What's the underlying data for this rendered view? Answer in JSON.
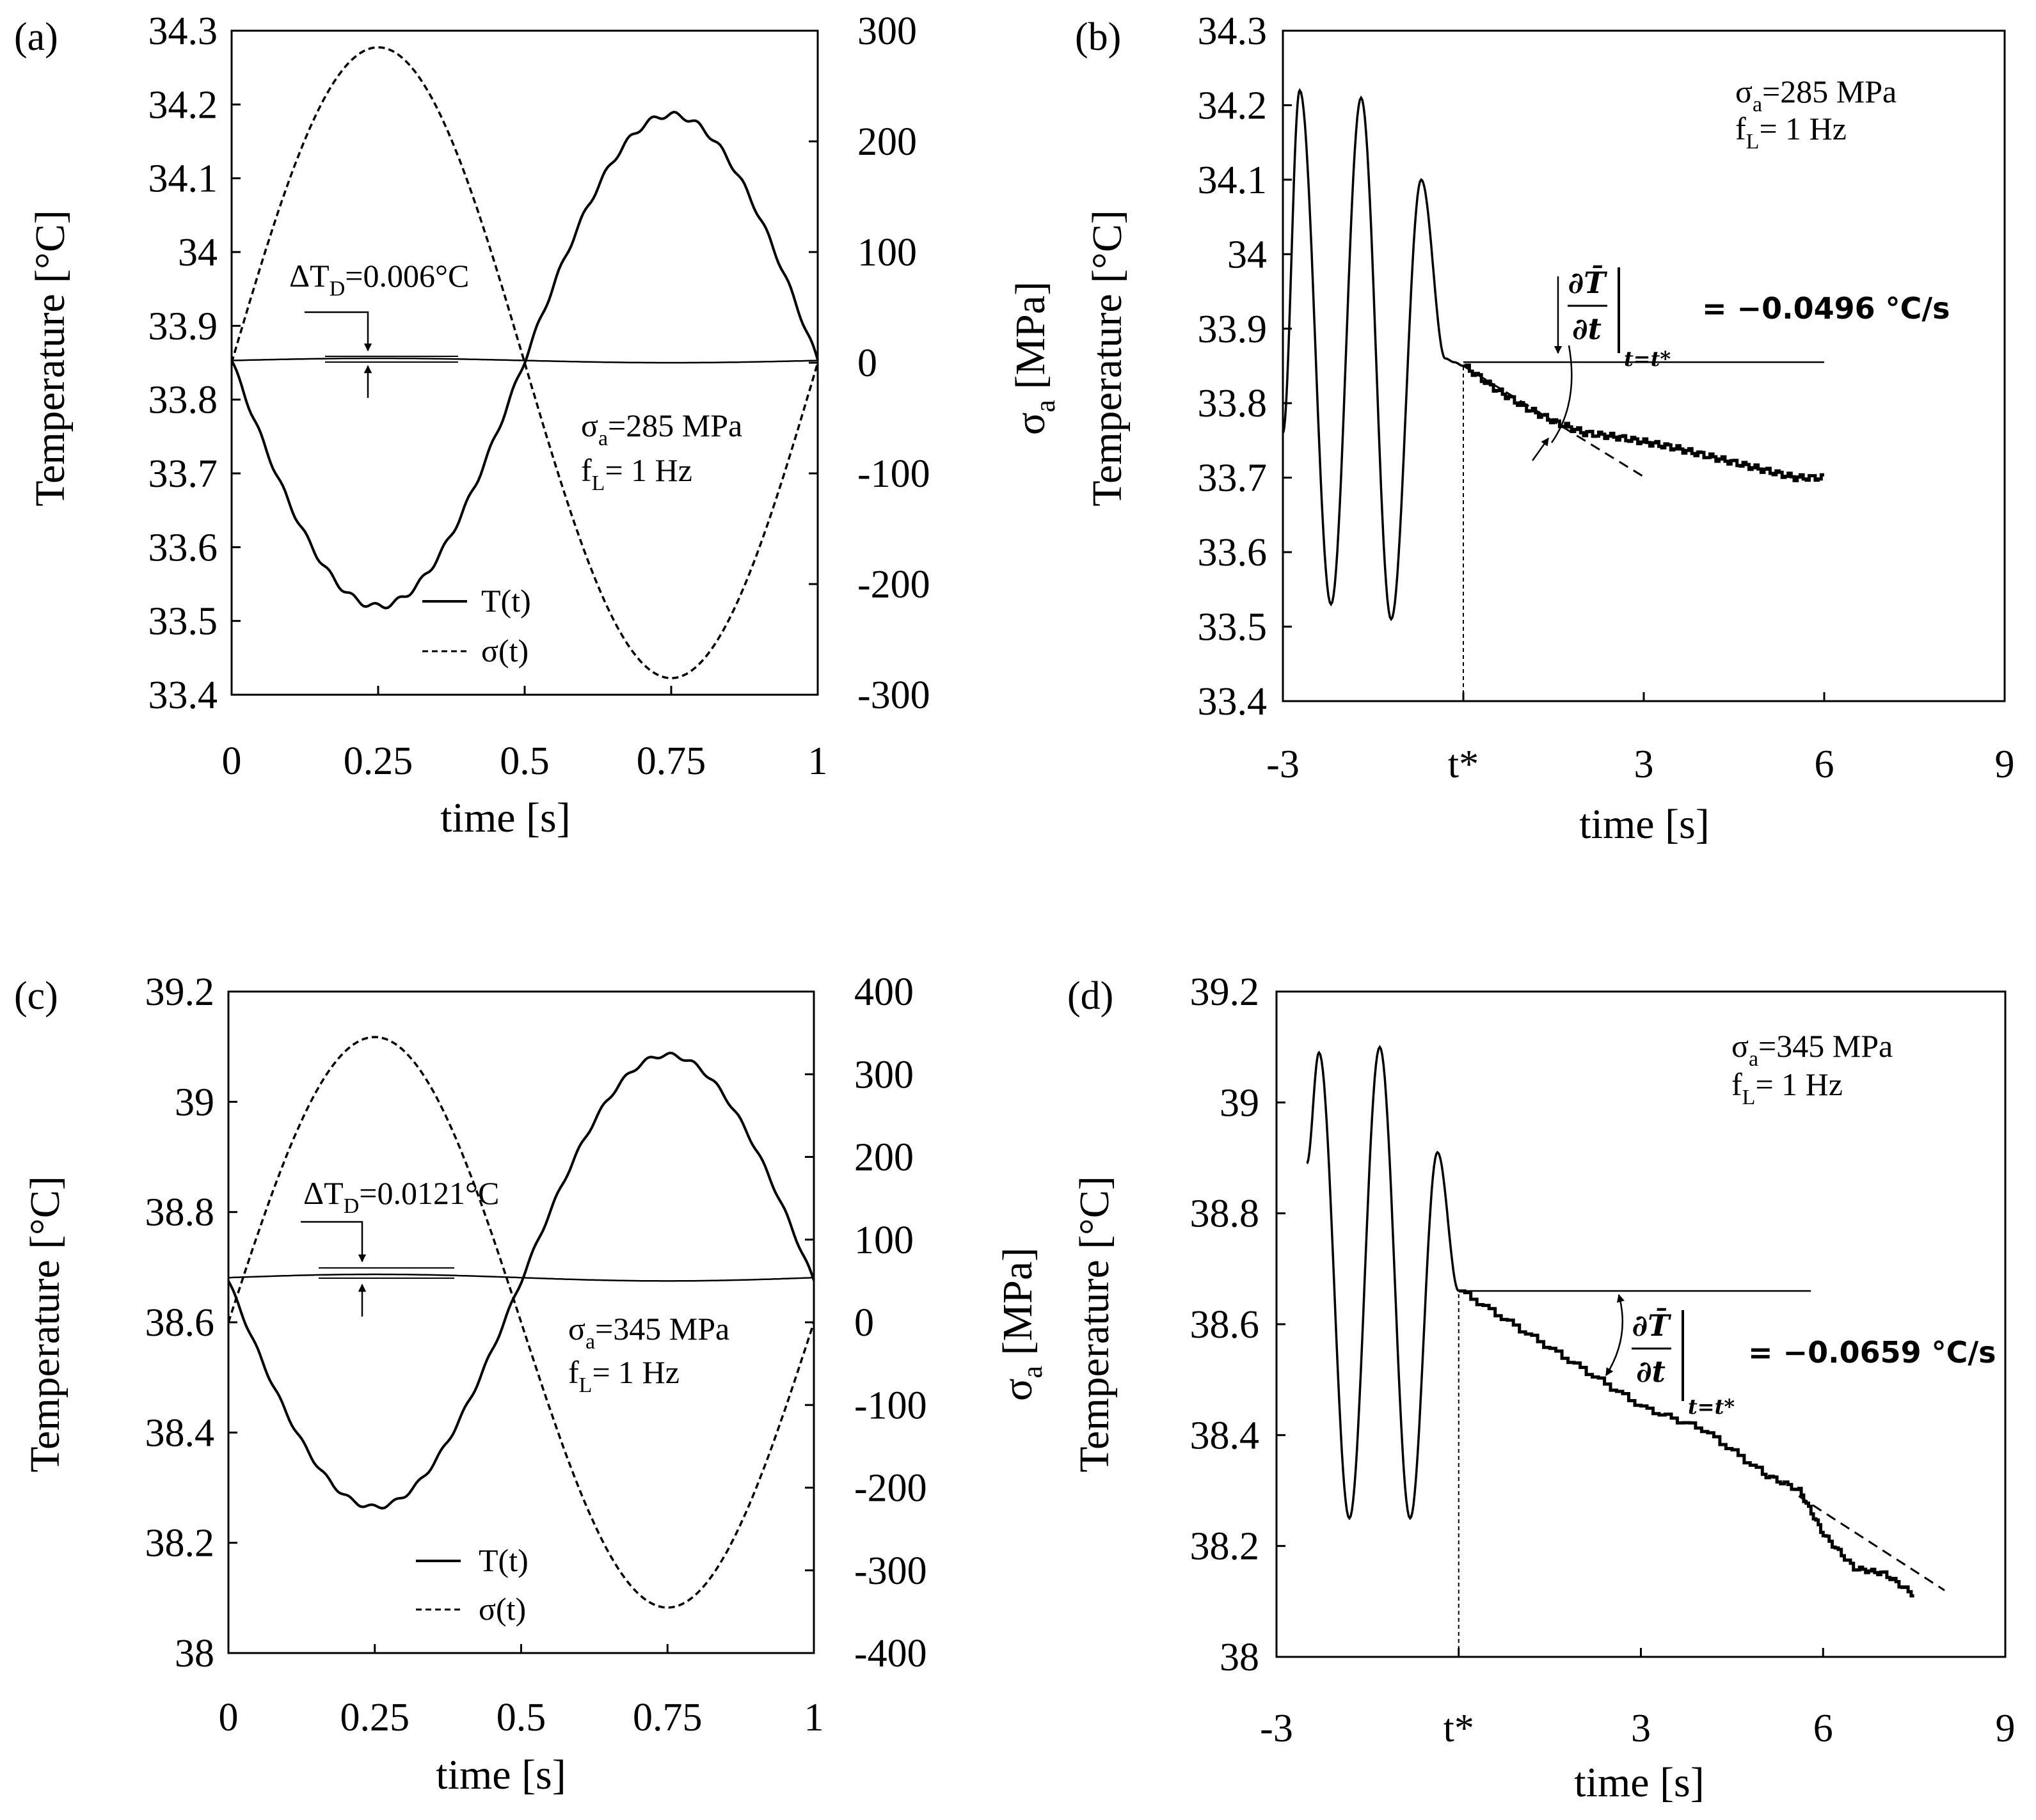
{
  "figure": {
    "panels": [
      "(a)",
      "(b)",
      "(c)",
      "(d)"
    ]
  },
  "chart_data": [
    {
      "id": "a",
      "type": "line",
      "panel_label": "(a)",
      "xlabel": "time [s]",
      "ylabel": "Temperature [°C]",
      "y2label_main": "σ",
      "y2label_sub": "a",
      "y2label_tail": " [MPa]",
      "xlim": [
        0,
        1
      ],
      "ylim": [
        33.4,
        34.3
      ],
      "y2lim": [
        -300,
        300
      ],
      "xticks": [
        0,
        0.25,
        0.5,
        0.75,
        1
      ],
      "xtick_labels": [
        "0",
        "0.25",
        "0.5",
        "0.75",
        "1"
      ],
      "yticks": [
        33.4,
        33.5,
        33.6,
        33.7,
        33.8,
        33.9,
        34,
        34.1,
        34.2,
        34.3
      ],
      "ytick_labels": [
        "33.4",
        "33.5",
        "33.6",
        "33.7",
        "33.8",
        "33.9",
        "34",
        "34.1",
        "34.2",
        "34.3"
      ],
      "y2ticks": [
        -300,
        -200,
        -100,
        0,
        100,
        200,
        300
      ],
      "y2tick_labels": [
        "-300",
        "-200",
        "-100",
        "0",
        "100",
        "200",
        "300"
      ],
      "series": [
        {
          "name": "T(t)",
          "axis": "left",
          "style": "solid",
          "model": "T = Tmean - dT*sin(2*pi*t)",
          "Tmean": 33.853,
          "dT": 0.333
        },
        {
          "name": "σ(t)",
          "axis": "right",
          "style": "dashed",
          "model": "sigma = amp*sin(2*pi*t)",
          "amp": 285
        },
        {
          "name": "mean",
          "axis": "left",
          "style": "solid-thin",
          "Tmean": 33.853,
          "amplitude": 0.003
        }
      ],
      "legend": {
        "entries": [
          "T(t)",
          "σ(t)"
        ]
      },
      "annotations": {
        "dT_label_main": "ΔT",
        "dT_label_sub": "D",
        "dT_label_tail": "=0.006°C",
        "sigma_main": "σ",
        "sigma_sub": "a",
        "sigma_tail": "=285 MPa",
        "f_main": "f",
        "f_sub": "L",
        "f_tail": "= 1 Hz"
      }
    },
    {
      "id": "b",
      "type": "line",
      "panel_label": "(b)",
      "xlabel": "time [s]",
      "ylabel": "Temperature [°C]",
      "xlim": [
        -3,
        9
      ],
      "ylim": [
        33.4,
        34.3
      ],
      "xticks": [
        -3,
        0,
        3,
        6,
        9
      ],
      "xtick_labels": [
        "-3",
        "t*",
        "3",
        "6",
        "9"
      ],
      "yticks": [
        33.4,
        33.5,
        33.6,
        33.7,
        33.8,
        33.9,
        34,
        34.1,
        34.2,
        34.3
      ],
      "ytick_labels": [
        "33.4",
        "33.5",
        "33.6",
        "33.7",
        "33.8",
        "33.9",
        "34",
        "34.1",
        "34.2",
        "34.3"
      ],
      "series": [
        {
          "name": "oscillation",
          "style": "solid",
          "x": [
            -3,
            -2.72,
            -2.2,
            -1.7,
            -1.2,
            -0.7,
            -0.3,
            -0.15,
            0
          ],
          "y": [
            33.76,
            34.22,
            33.53,
            34.21,
            33.51,
            34.1,
            33.86,
            33.855,
            33.85
          ]
        },
        {
          "name": "cooling",
          "style": "stepped",
          "x": [
            0,
            0.5,
            1,
            1.5,
            2,
            2.5,
            3,
            3.5,
            4,
            4.5,
            5,
            5.5,
            6
          ],
          "y": [
            33.85,
            33.82,
            33.795,
            33.775,
            33.76,
            33.755,
            33.748,
            33.74,
            33.73,
            33.72,
            33.71,
            33.7,
            33.7
          ]
        },
        {
          "name": "tangent",
          "style": "dashed",
          "x": [
            0,
            3
          ],
          "y": [
            33.85,
            33.7012
          ]
        },
        {
          "name": "reference",
          "style": "solid-thin",
          "x": [
            0,
            6
          ],
          "y": [
            33.855,
            33.855
          ]
        },
        {
          "name": "t* marker",
          "style": "dashed-vertical",
          "x": [
            0,
            0
          ],
          "y": [
            33.4,
            33.85
          ]
        }
      ],
      "annotations": {
        "sigma_main": "σ",
        "sigma_sub": "a",
        "sigma_tail": "=285 MPa",
        "f_main": "f",
        "f_sub": "L",
        "f_tail": "= 1 Hz",
        "deriv_num": "∂T̄",
        "deriv_den": "∂t",
        "deriv_sub": "t=t*",
        "slope_text": "= −0.0496 °C/s",
        "slope_value": -0.0496
      }
    },
    {
      "id": "c",
      "type": "line",
      "panel_label": "(c)",
      "xlabel": "time [s]",
      "ylabel": "Temperature [°C]",
      "y2label_main": "σ",
      "y2label_sub": "a",
      "y2label_tail": " [MPa]",
      "xlim": [
        0,
        1
      ],
      "ylim": [
        38,
        39.2
      ],
      "y2lim": [
        -400,
        400
      ],
      "xticks": [
        0,
        0.25,
        0.5,
        0.75,
        1
      ],
      "xtick_labels": [
        "0",
        "0.25",
        "0.5",
        "0.75",
        "1"
      ],
      "yticks": [
        38,
        38.2,
        38.4,
        38.6,
        38.8,
        39,
        39.2
      ],
      "ytick_labels": [
        "38",
        "38.2",
        "38.4",
        "38.6",
        "38.8",
        "39",
        "39.2"
      ],
      "y2ticks": [
        -400,
        -300,
        -200,
        -100,
        0,
        100,
        200,
        300,
        400
      ],
      "y2tick_labels": [
        "-400",
        "-300",
        "-200",
        "-100",
        "0",
        "100",
        "200",
        "300",
        "400"
      ],
      "series": [
        {
          "name": "T(t)",
          "axis": "left",
          "style": "solid",
          "model": "T = Tmean - dT*sin(2*pi*t)",
          "Tmean": 38.675,
          "dT": 0.41
        },
        {
          "name": "σ(t)",
          "axis": "right",
          "style": "dashed",
          "model": "sigma = amp*sin(2*pi*t)",
          "amp": 345
        },
        {
          "name": "mean",
          "axis": "left",
          "style": "solid-thin",
          "Tmean": 38.681,
          "amplitude": 0.006
        }
      ],
      "legend": {
        "entries": [
          "T(t)",
          "σ(t)"
        ]
      },
      "annotations": {
        "dT_label_main": "ΔT",
        "dT_label_sub": "D",
        "dT_label_tail": "=0.0121°C",
        "sigma_main": "σ",
        "sigma_sub": "a",
        "sigma_tail": "=345 MPa",
        "f_main": "f",
        "f_sub": "L",
        "f_tail": "= 1 Hz"
      }
    },
    {
      "id": "d",
      "type": "line",
      "panel_label": "(d)",
      "xlabel": "time [s]",
      "ylabel": "Temperature [°C]",
      "xlim": [
        -3,
        9
      ],
      "ylim": [
        38,
        39.2
      ],
      "xticks": [
        -3,
        0,
        3,
        6,
        9
      ],
      "xtick_labels": [
        "-3",
        "t*",
        "3",
        "6",
        "9"
      ],
      "yticks": [
        38,
        38.2,
        38.4,
        38.6,
        38.8,
        39,
        39.2
      ],
      "ytick_labels": [
        "38",
        "38.2",
        "38.4",
        "38.6",
        "38.8",
        "39",
        "39.2"
      ],
      "series": [
        {
          "name": "oscillation",
          "style": "solid",
          "x": [
            -2.5,
            -2.3,
            -1.8,
            -1.3,
            -0.8,
            -0.35,
            0
          ],
          "y": [
            38.89,
            39.09,
            38.25,
            39.1,
            38.25,
            38.91,
            38.66
          ]
        },
        {
          "name": "cooling",
          "style": "stepped",
          "x": [
            0,
            1,
            2,
            3,
            4,
            5,
            5.6,
            6,
            6.5,
            7,
            7.5
          ],
          "y": [
            38.66,
            38.59,
            38.52,
            38.45,
            38.41,
            38.33,
            38.3,
            38.22,
            38.16,
            38.15,
            38.11
          ]
        },
        {
          "name": "tangent",
          "style": "dashed",
          "x": [
            5.6,
            8
          ],
          "y": [
            38.29,
            38.12
          ]
        },
        {
          "name": "reference",
          "style": "solid-thin",
          "x": [
            0,
            5.8
          ],
          "y": [
            38.66,
            38.66
          ]
        },
        {
          "name": "t* marker",
          "style": "dashed-vertical",
          "x": [
            0,
            0
          ],
          "y": [
            38,
            38.66
          ]
        }
      ],
      "annotations": {
        "sigma_main": "σ",
        "sigma_sub": "a",
        "sigma_tail": "=345 MPa",
        "f_main": "f",
        "f_sub": "L",
        "f_tail": "= 1 Hz",
        "deriv_num": "∂T̄",
        "deriv_den": "∂t",
        "deriv_sub": "t=t*",
        "slope_text": "= −0.0659 °C/s",
        "slope_value": -0.0659
      }
    }
  ]
}
